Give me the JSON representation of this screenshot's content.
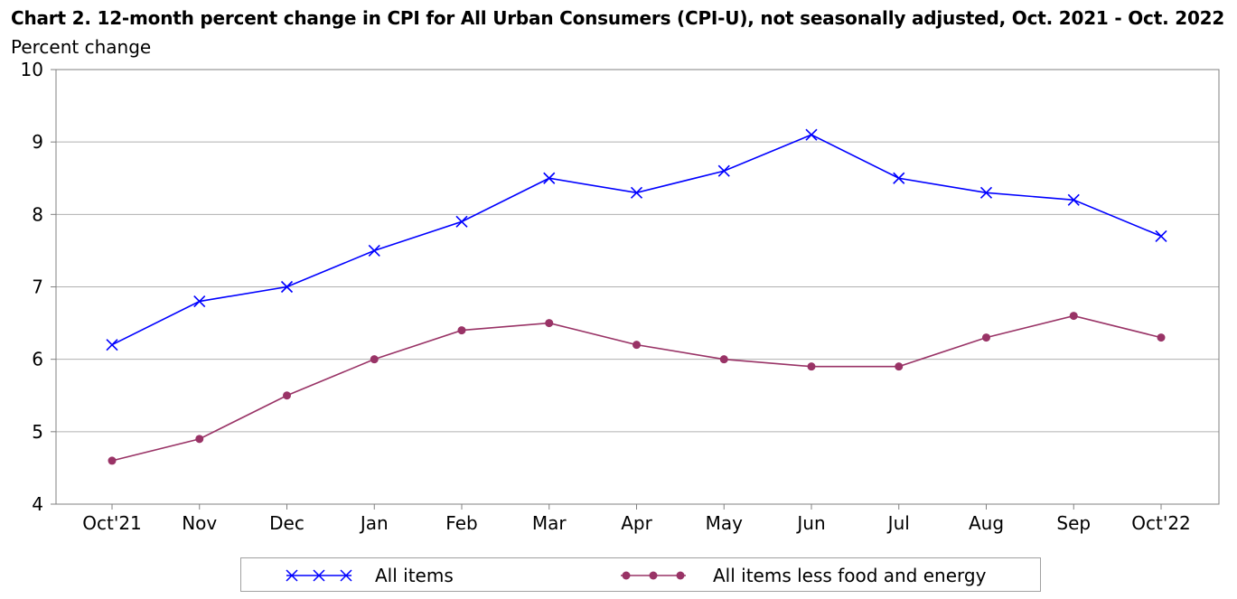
{
  "chart_data": {
    "type": "line",
    "title": "Chart 2. 12-month percent change in CPI for All Urban Consumers (CPI-U), not seasonally adjusted, Oct. 2021 - Oct. 2022",
    "ylabel": "Percent change",
    "xlabel": "",
    "categories": [
      "Oct'21",
      "Nov",
      "Dec",
      "Jan",
      "Feb",
      "Mar",
      "Apr",
      "May",
      "Jun",
      "Jul",
      "Aug",
      "Sep",
      "Oct'22"
    ],
    "ylim": [
      4,
      10
    ],
    "yticks": [
      "4",
      "5",
      "6",
      "7",
      "8",
      "9",
      "10"
    ],
    "grid": true,
    "legend_position": "bottom",
    "series": [
      {
        "name": "All items",
        "color": "#0000ff",
        "marker": "x",
        "values": [
          6.2,
          6.8,
          7.0,
          7.5,
          7.9,
          8.5,
          8.3,
          8.6,
          9.1,
          8.5,
          8.3,
          8.2,
          7.7
        ]
      },
      {
        "name": "All items less food and energy",
        "color": "#993366",
        "marker": "circle",
        "values": [
          4.6,
          4.9,
          5.5,
          6.0,
          6.4,
          6.5,
          6.2,
          6.0,
          5.9,
          5.9,
          6.3,
          6.6,
          6.3
        ]
      }
    ]
  }
}
